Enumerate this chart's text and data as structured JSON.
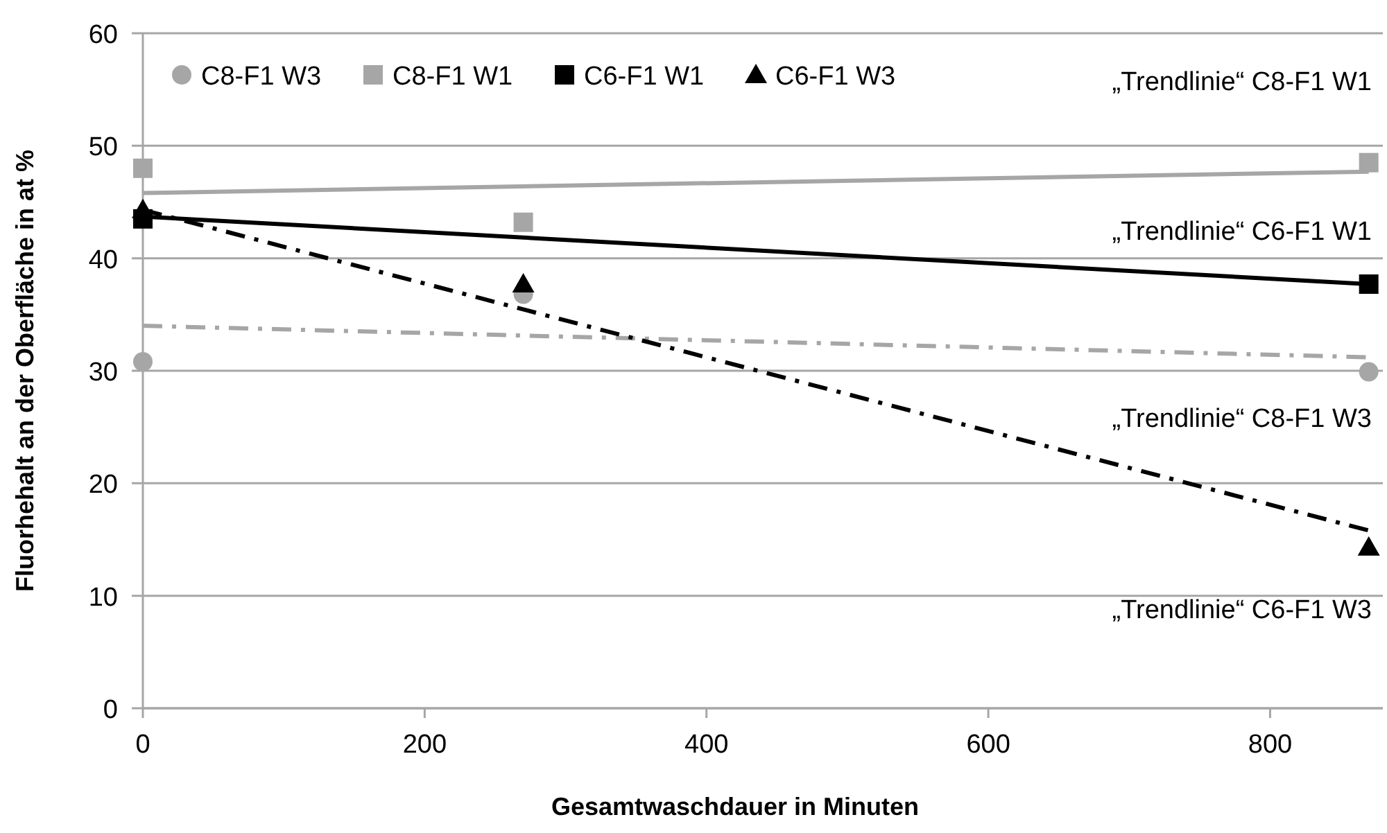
{
  "chart_data": {
    "type": "scatter",
    "xlabel": "Gesamtwaschdauer in Minuten",
    "ylabel": "Fluorhehalt an der Oberfläche in at %",
    "xlim": [
      0,
      880
    ],
    "xticks": [
      0,
      200,
      400,
      600,
      800
    ],
    "ylim": [
      0,
      60
    ],
    "yticks": [
      0,
      10,
      20,
      30,
      40,
      50,
      60
    ],
    "grid": "y",
    "legend": "top left",
    "series": [
      {
        "name": "C8-F1 W3",
        "color": "#a6a6a6",
        "marker": "circle",
        "x": [
          0,
          270,
          870
        ],
        "values": [
          30.8,
          36.8,
          29.9
        ]
      },
      {
        "name": "C8-F1 W1",
        "color": "#a6a6a6",
        "marker": "square",
        "x": [
          0,
          270,
          870
        ],
        "values": [
          48.0,
          43.2,
          48.5
        ]
      },
      {
        "name": "C6-F1 W1",
        "color": "#000000",
        "marker": "square",
        "x": [
          0,
          870
        ],
        "values": [
          43.5,
          37.7
        ]
      },
      {
        "name": "C6-F1 W3",
        "color": "#000000",
        "marker": "triangle",
        "x": [
          0,
          270,
          870
        ],
        "values": [
          44.3,
          37.7,
          14.3
        ]
      },
      {
        "type": "line",
        "color": "#a6a6a6",
        "line_style": "solid",
        "x": [
          0,
          870
        ],
        "values": [
          45.8,
          47.7
        ]
      },
      {
        "type": "line",
        "color": "#000000",
        "line_style": "solid",
        "x": [
          0,
          870
        ],
        "values": [
          43.7,
          37.7
        ]
      },
      {
        "type": "line",
        "color": "#a6a6a6",
        "line_style": "dashed",
        "x": [
          0,
          870
        ],
        "values": [
          34.0,
          31.2
        ]
      },
      {
        "type": "line",
        "color": "#000000",
        "line_style": "dashed",
        "x": [
          0,
          870
        ],
        "values": [
          44.3,
          15.8
        ]
      }
    ],
    "annotations": [
      "„Trendlinie“ C8-F1 W1",
      "„Trendlinie“ C6-F1 W1",
      "„Trendlinie“ C8-F1 W3",
      "„Trendlinie“ C6-F1 W3"
    ]
  }
}
